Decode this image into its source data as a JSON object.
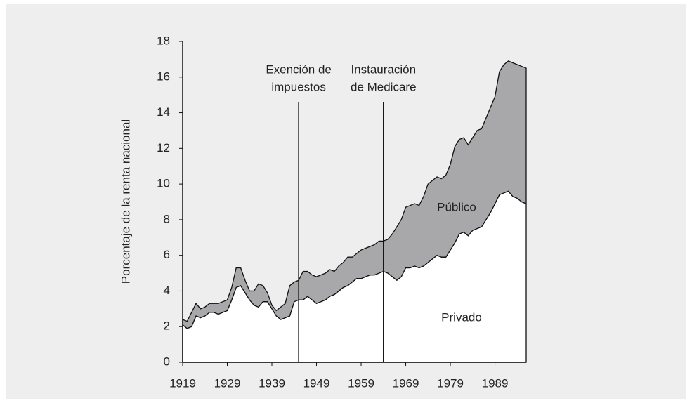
{
  "chart_data": {
    "type": "stacked_area",
    "y_label": "Porcentaje de la renta nacional",
    "x": [
      1919,
      1920,
      1921,
      1922,
      1923,
      1924,
      1925,
      1926,
      1927,
      1928,
      1929,
      1930,
      1931,
      1932,
      1933,
      1934,
      1935,
      1936,
      1937,
      1938,
      1939,
      1940,
      1941,
      1942,
      1943,
      1944,
      1945,
      1946,
      1947,
      1948,
      1949,
      1950,
      1951,
      1952,
      1953,
      1954,
      1955,
      1956,
      1957,
      1958,
      1959,
      1960,
      1961,
      1962,
      1963,
      1964,
      1965,
      1966,
      1967,
      1968,
      1969,
      1970,
      1971,
      1972,
      1973,
      1974,
      1975,
      1976,
      1977,
      1978,
      1979,
      1980,
      1981,
      1982,
      1983,
      1984,
      1985,
      1986,
      1987,
      1988,
      1989,
      1990,
      1991,
      1992,
      1993,
      1994,
      1995,
      1996
    ],
    "series": [
      {
        "name": "Privado",
        "color": "#ffffff",
        "values": [
          2.1,
          1.9,
          2.0,
          2.6,
          2.5,
          2.6,
          2.8,
          2.8,
          2.7,
          2.8,
          2.9,
          3.5,
          4.2,
          4.3,
          3.9,
          3.5,
          3.2,
          3.1,
          3.4,
          3.4,
          3.0,
          2.6,
          2.4,
          2.5,
          2.6,
          3.4,
          3.5,
          3.5,
          3.7,
          3.5,
          3.3,
          3.4,
          3.5,
          3.7,
          3.8,
          4.0,
          4.2,
          4.3,
          4.5,
          4.7,
          4.7,
          4.8,
          4.9,
          4.9,
          5.0,
          5.1,
          5.0,
          4.8,
          4.6,
          4.8,
          5.3,
          5.3,
          5.4,
          5.3,
          5.4,
          5.6,
          5.8,
          6.0,
          5.9,
          5.9,
          6.3,
          6.7,
          7.2,
          7.3,
          7.1,
          7.4,
          7.5,
          7.6,
          8.0,
          8.4,
          8.9,
          9.4,
          9.5,
          9.6,
          9.3,
          9.2,
          9.0,
          8.9
        ]
      },
      {
        "name": "Público",
        "color": "#a8a8aa",
        "values": [
          0.3,
          0.4,
          0.8,
          0.7,
          0.5,
          0.5,
          0.5,
          0.5,
          0.6,
          0.6,
          0.6,
          0.7,
          1.1,
          1.0,
          0.7,
          0.5,
          0.8,
          1.3,
          0.9,
          0.5,
          0.2,
          0.3,
          0.7,
          0.8,
          1.7,
          1.1,
          1.1,
          1.6,
          1.4,
          1.4,
          1.5,
          1.5,
          1.5,
          1.5,
          1.3,
          1.4,
          1.4,
          1.6,
          1.4,
          1.4,
          1.6,
          1.6,
          1.6,
          1.7,
          1.8,
          1.7,
          1.9,
          2.4,
          3.0,
          3.2,
          3.4,
          3.5,
          3.5,
          3.5,
          3.9,
          4.4,
          4.4,
          4.4,
          4.4,
          4.6,
          4.8,
          5.4,
          5.3,
          5.3,
          5.1,
          5.2,
          5.5,
          5.5,
          5.7,
          5.9,
          6.0,
          6.9,
          7.2,
          7.3,
          7.5,
          7.5,
          7.6,
          7.6
        ]
      }
    ],
    "xlim": [
      1919,
      1996
    ],
    "xticks": [
      1919,
      1929,
      1939,
      1949,
      1959,
      1969,
      1979,
      1989
    ],
    "ylim": [
      0,
      18
    ],
    "yticks": [
      0,
      2,
      4,
      6,
      8,
      10,
      12,
      14,
      16,
      18
    ],
    "annotations": [
      {
        "x": 1945,
        "lines": [
          "Exención de",
          "impuestos"
        ]
      },
      {
        "x": 1964,
        "lines": [
          "Instauración",
          "de Medicare"
        ]
      }
    ]
  }
}
